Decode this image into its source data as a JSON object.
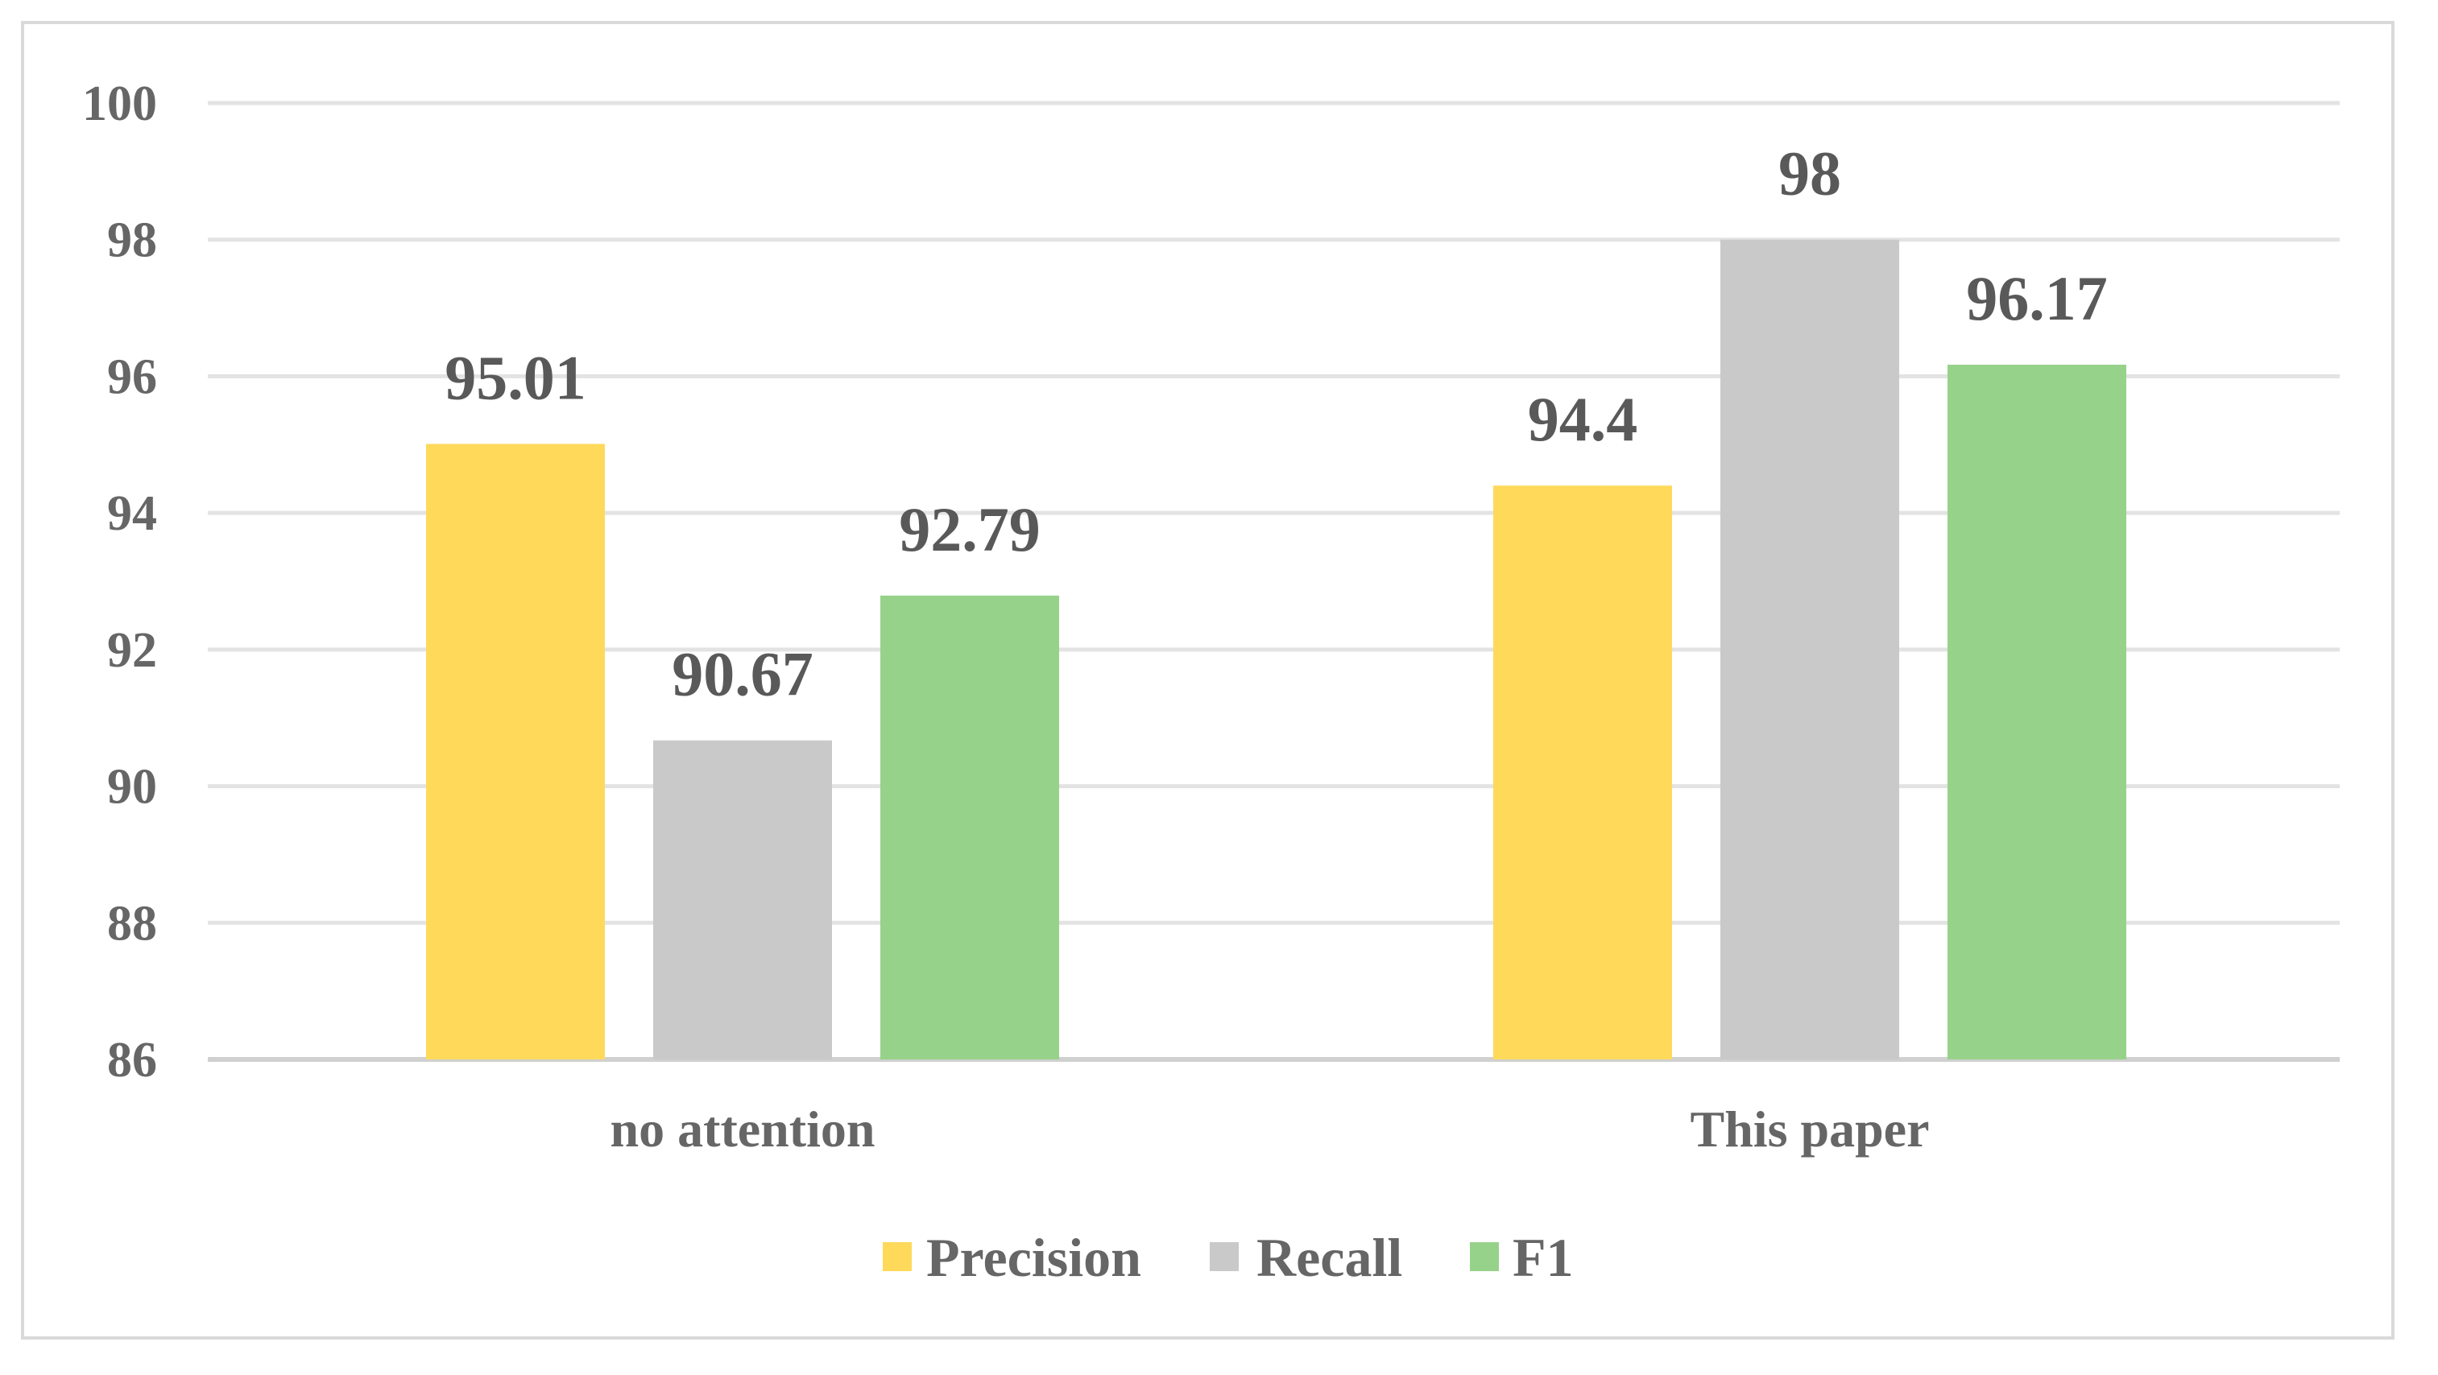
{
  "chart_data": {
    "type": "bar",
    "categories": [
      "no attention",
      "This paper"
    ],
    "series": [
      {
        "name": "Precision",
        "values": [
          95.01,
          94.4
        ],
        "color": "#ffd95a"
      },
      {
        "name": "Recall",
        "values": [
          90.67,
          98
        ],
        "color": "#c9c9c9"
      },
      {
        "name": "F1",
        "values": [
          92.79,
          96.17
        ],
        "color": "#97d28a"
      }
    ],
    "data_labels": [
      [
        "95.01",
        "94.4"
      ],
      [
        "90.67",
        "98"
      ],
      [
        "92.79",
        "96.17"
      ]
    ],
    "yticks": [
      "86",
      "88",
      "90",
      "92",
      "94",
      "96",
      "98",
      "100"
    ],
    "ylim": [
      86,
      100
    ],
    "grid": true,
    "legend": "bottom",
    "title": "",
    "xlabel": "",
    "ylabel": ""
  }
}
